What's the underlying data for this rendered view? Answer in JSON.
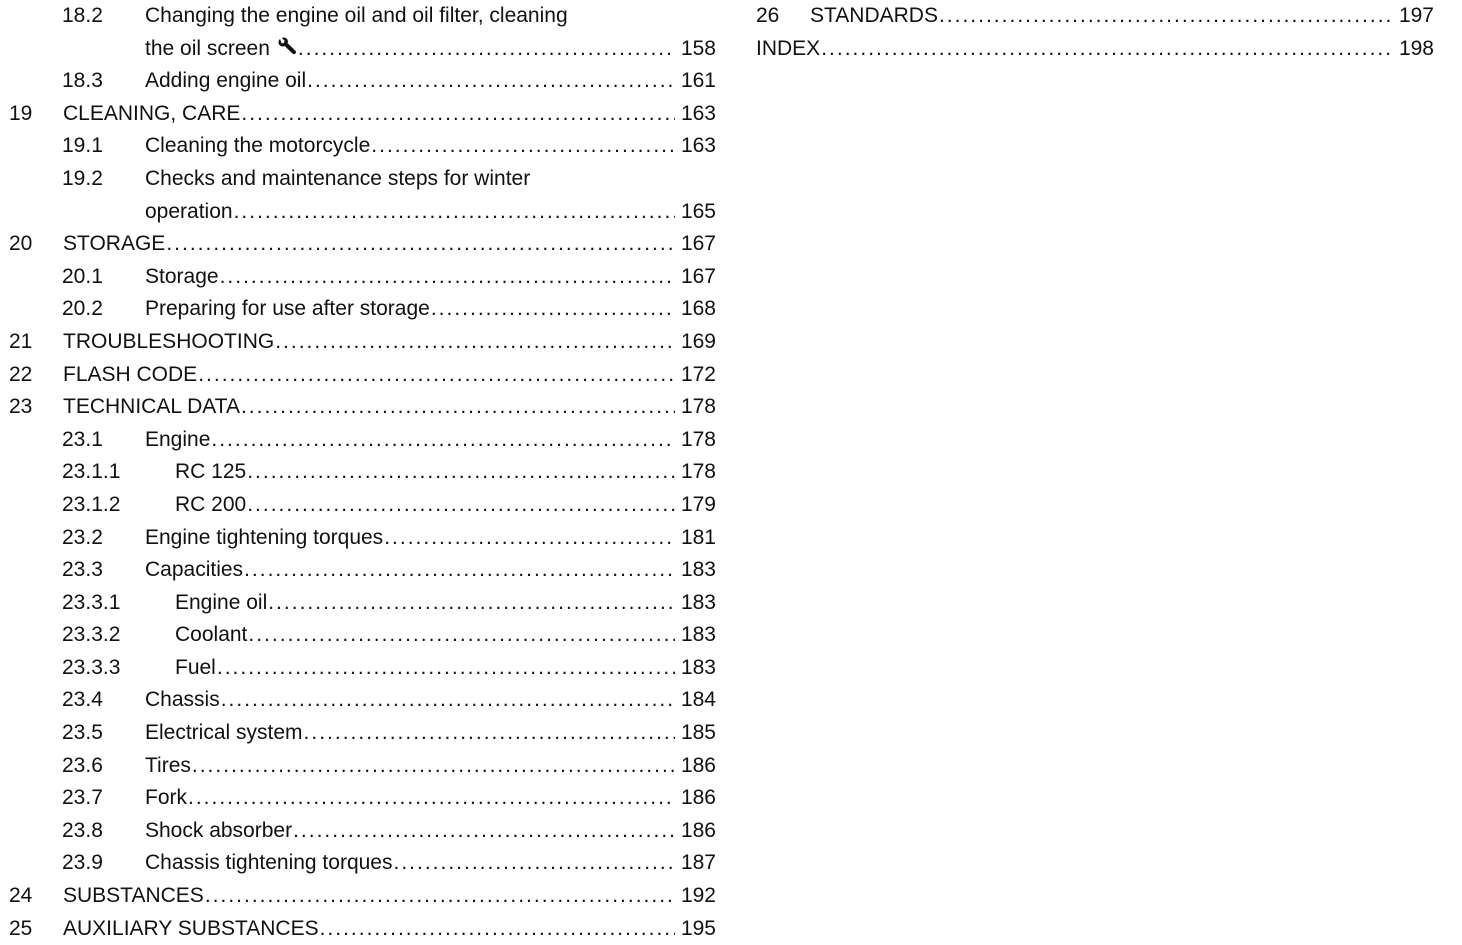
{
  "left_column": [
    {
      "number": "18.2",
      "title_line1": "Changing the engine oil and oil filter, cleaning",
      "title": "the oil screen",
      "icon": "wrench-icon",
      "page": "158"
    },
    {
      "number": "18.3",
      "title": "Adding engine oil",
      "page": "161"
    },
    {
      "number": "19",
      "title": "CLEANING, CARE",
      "page": "163"
    },
    {
      "number": "19.1",
      "title": "Cleaning the motorcycle",
      "page": "163"
    },
    {
      "number": "19.2",
      "title_line1": "Checks and maintenance steps for winter",
      "title": "operation",
      "page": "165"
    },
    {
      "number": "20",
      "title": "STORAGE",
      "page": "167"
    },
    {
      "number": "20.1",
      "title": "Storage",
      "page": "167"
    },
    {
      "number": "20.2",
      "title": "Preparing for use after storage",
      "page": "168"
    },
    {
      "number": "21",
      "title": "TROUBLESHOOTING",
      "page": "169"
    },
    {
      "number": "22",
      "title": "FLASH CODE",
      "page": "172"
    },
    {
      "number": "23",
      "title": "TECHNICAL DATA",
      "page": "178"
    },
    {
      "number": "23.1",
      "title": "Engine",
      "page": "178"
    },
    {
      "number": "23.1.1",
      "title": "RC 125",
      "page": "178"
    },
    {
      "number": "23.1.2",
      "title": "RC 200",
      "page": "179"
    },
    {
      "number": "23.2",
      "title": "Engine tightening torques",
      "page": "181"
    },
    {
      "number": "23.3",
      "title": "Capacities",
      "page": "183"
    },
    {
      "number": "23.3.1",
      "title": "Engine oil",
      "page": "183"
    },
    {
      "number": "23.3.2",
      "title": "Coolant",
      "page": "183"
    },
    {
      "number": "23.3.3",
      "title": "Fuel",
      "page": "183"
    },
    {
      "number": "23.4",
      "title": "Chassis",
      "page": "184"
    },
    {
      "number": "23.5",
      "title": "Electrical system",
      "page": "185"
    },
    {
      "number": "23.6",
      "title": "Tires",
      "page": "186"
    },
    {
      "number": "23.7",
      "title": "Fork",
      "page": "186"
    },
    {
      "number": "23.8",
      "title": "Shock absorber",
      "page": "186"
    },
    {
      "number": "23.9",
      "title": "Chassis tightening torques",
      "page": "187"
    },
    {
      "number": "24",
      "title": "SUBSTANCES",
      "page": "192"
    },
    {
      "number": "25",
      "title": "AUXILIARY SUBSTANCES",
      "page": "195"
    }
  ],
  "right_column": [
    {
      "number": "26",
      "title": "STANDARDS",
      "page": "197"
    },
    {
      "number": "",
      "title": "INDEX",
      "page": "198"
    }
  ]
}
